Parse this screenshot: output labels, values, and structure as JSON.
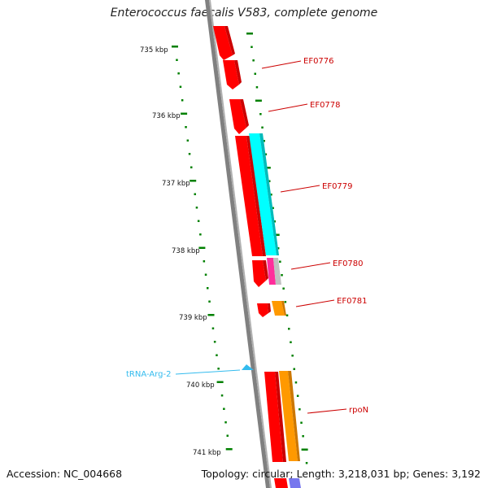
{
  "title": "Enterococcus faecalis V583, complete genome",
  "footer": {
    "accession": "Accession: NC_004668",
    "topology": "Topology: circular; Length: 3,218,031 bp; Genes: 3,192"
  },
  "scale": {
    "unit": "kbp",
    "labels": [
      "735 kbp",
      "736 kbp",
      "737 kbp",
      "738 kbp",
      "739 kbp",
      "740 kbp",
      "741 kbp"
    ]
  },
  "genes": [
    {
      "name": "EF0776",
      "color": "#ff0000"
    },
    {
      "name": "EF0778",
      "color": "#ff0000"
    },
    {
      "name": "EF0779",
      "color": "#00ffff"
    },
    {
      "name": "EF0780",
      "color": "#ff2d9b"
    },
    {
      "name": "EF0781",
      "color": "#ff9900"
    },
    {
      "name": "rpoN",
      "color": "#ff9900"
    }
  ],
  "trna": {
    "name": "tRNA-Arg-2",
    "color": "#33bbee"
  },
  "colors": {
    "backbone": "#808080",
    "cds_red": "#ff0000",
    "cds_cyan": "#00ffff",
    "cds_pink": "#ff2d9b",
    "cds_grey": "#c0c0c0",
    "cds_orange": "#ff9900",
    "cds_blue": "#7777ee",
    "tick": "#008000",
    "label_red": "#cc0000",
    "label_trna": "#33bbee"
  }
}
